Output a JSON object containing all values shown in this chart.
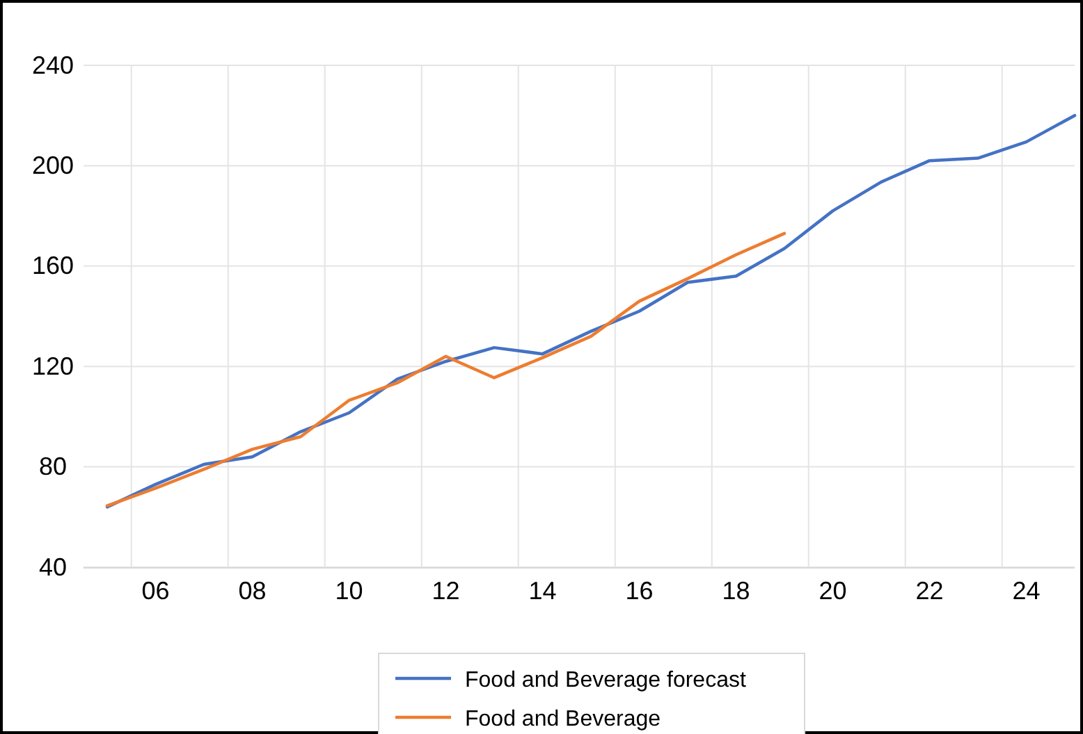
{
  "chart_data": {
    "type": "line",
    "categories": [
      null,
      "06",
      null,
      "08",
      null,
      "10",
      null,
      "12",
      null,
      "14",
      null,
      "16",
      null,
      "18",
      null,
      "20",
      null,
      "22",
      null,
      "24",
      null
    ],
    "series": [
      {
        "name": "Food and Beverage forecast",
        "color": "#4472c4",
        "values": [
          64,
          73,
          81,
          84,
          94,
          101.5,
          115,
          122,
          127.5,
          125,
          134,
          142,
          153.5,
          156,
          167,
          182,
          193.5,
          202,
          203,
          209.5,
          220
        ]
      },
      {
        "name": "Food and Beverage",
        "color": "#ed7d31",
        "values": [
          64.5,
          71.5,
          79,
          87,
          92,
          106.5,
          113.5,
          124,
          115.5,
          123.5,
          132,
          146,
          155,
          164.5,
          173,
          null,
          null,
          null,
          null,
          null,
          null
        ]
      }
    ],
    "ylim": [
      40,
      240
    ],
    "yticks": [
      40,
      80,
      120,
      160,
      200,
      240
    ],
    "grid": true,
    "legend": "bottom",
    "marker": "none",
    "line_style": "solid"
  }
}
